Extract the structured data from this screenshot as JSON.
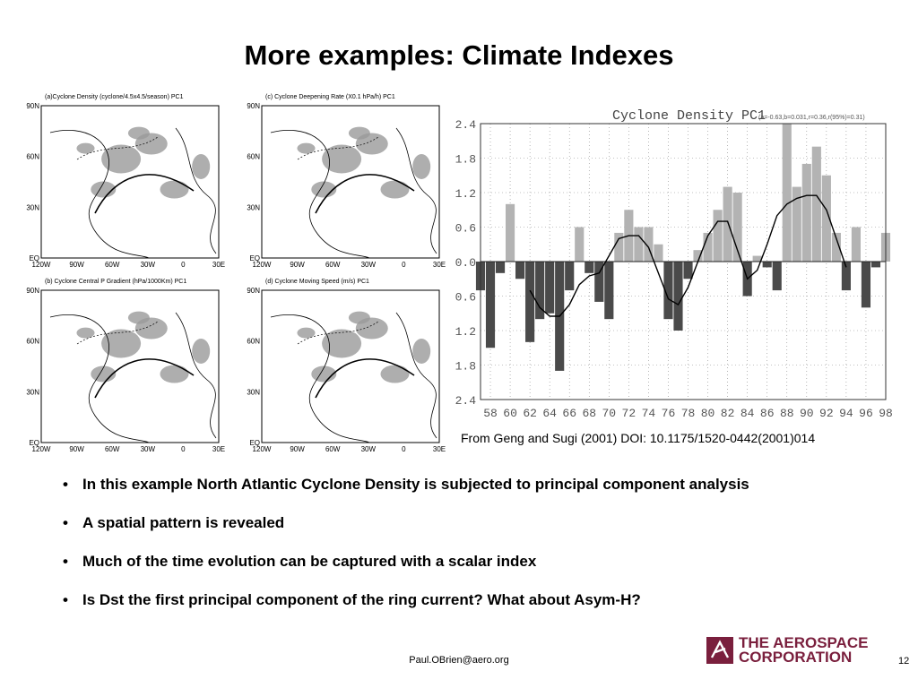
{
  "title": "More examples: Climate Indexes",
  "maps": [
    {
      "caption": "(a)Cyclone Density (cyclone/4.5x4.5/season) PC1",
      "lat_labels": [
        "90N",
        "60N",
        "30N",
        "EQ"
      ],
      "lon_labels": [
        "120W",
        "90W",
        "60W",
        "30W",
        "0",
        "30E"
      ]
    },
    {
      "caption": "(c)  Cyclone Deepening Rate (X0.1 hPa/h) PC1",
      "lat_labels": [
        "90N",
        "60N",
        "30N",
        "EQ"
      ],
      "lon_labels": [
        "120W",
        "90W",
        "60W",
        "30W",
        "0",
        "30E"
      ]
    },
    {
      "caption": "(b) Cyclone Central P Gradient (hPa/1000Km) PC1",
      "lat_labels": [
        "90N",
        "60N",
        "30N",
        "EQ"
      ],
      "lon_labels": [
        "120W",
        "90W",
        "60W",
        "30W",
        "0",
        "30E"
      ]
    },
    {
      "caption": "(d)     Cyclone Moving Speed (m/s) PC1",
      "lat_labels": [
        "90N",
        "60N",
        "30N",
        "EQ"
      ],
      "lon_labels": [
        "120W",
        "90W",
        "60W",
        "30W",
        "0",
        "30E"
      ]
    }
  ],
  "chart_data": {
    "type": "bar",
    "title": "Cyclone Density PC1",
    "annotation": "(a=-0.63,b=0.031,r=0.36,r(95%)=0.31)",
    "x": [
      57,
      58,
      59,
      60,
      61,
      62,
      63,
      64,
      65,
      66,
      67,
      68,
      69,
      70,
      71,
      72,
      73,
      74,
      75,
      76,
      77,
      78,
      79,
      80,
      81,
      82,
      83,
      84,
      85,
      86,
      87,
      88,
      89,
      90,
      91,
      92,
      93,
      94,
      95,
      96,
      97,
      98
    ],
    "values": [
      -0.5,
      -1.5,
      -0.2,
      1.0,
      -0.3,
      -1.4,
      -1.0,
      -0.9,
      -1.9,
      -0.5,
      0.6,
      -0.2,
      -0.7,
      -1.0,
      0.5,
      0.9,
      0.6,
      0.6,
      0.3,
      -1.0,
      -1.2,
      -0.3,
      0.2,
      0.5,
      0.9,
      1.3,
      1.2,
      -0.6,
      0.1,
      -0.1,
      -0.5,
      2.4,
      1.3,
      1.7,
      2.0,
      1.5,
      0.5,
      -0.5,
      0.6,
      -0.8,
      -0.1,
      0.5
    ],
    "trend": [
      null,
      null,
      null,
      null,
      null,
      -0.5,
      -0.8,
      -0.95,
      -0.95,
      -0.75,
      -0.4,
      -0.25,
      -0.2,
      0.1,
      0.4,
      0.45,
      0.45,
      0.25,
      -0.2,
      -0.65,
      -0.75,
      -0.45,
      0.0,
      0.45,
      0.7,
      0.7,
      0.2,
      -0.3,
      -0.15,
      0.3,
      0.8,
      1.0,
      1.1,
      1.15,
      1.15,
      0.9,
      0.4,
      -0.1,
      null,
      null,
      null,
      null
    ],
    "xtick_labels": [
      "58",
      "60",
      "62",
      "64",
      "66",
      "68",
      "70",
      "72",
      "74",
      "76",
      "78",
      "80",
      "82",
      "84",
      "86",
      "88",
      "90",
      "92",
      "94",
      "96",
      "98"
    ],
    "ytick_labels": [
      "2.4",
      "1.8",
      "1.2",
      "0.6",
      "0.0",
      "0.6",
      "1.2",
      "1.8",
      "2.4"
    ],
    "ylim": [
      -2.4,
      2.4
    ],
    "grid": true
  },
  "credit": "From Geng and Sugi (2001) DOI: 10.1175/1520-0442(2001)014",
  "bullets": [
    "In this example North Atlantic Cyclone Density is subjected to principal component analysis",
    "A spatial pattern is revealed",
    "Much of the time evolution can be captured with a scalar index",
    "Is Dst the first principal component of the ring current? What about Asym-H?"
  ],
  "footer": {
    "email": "Paul.OBrien@aero.org",
    "logo_line1": "THE AEROSPACE",
    "logo_line2": "CORPORATION",
    "page": "12"
  },
  "colors": {
    "positive": "#b3b3b3",
    "negative": "#4a4a4a",
    "brand": "#7a1f3d"
  }
}
